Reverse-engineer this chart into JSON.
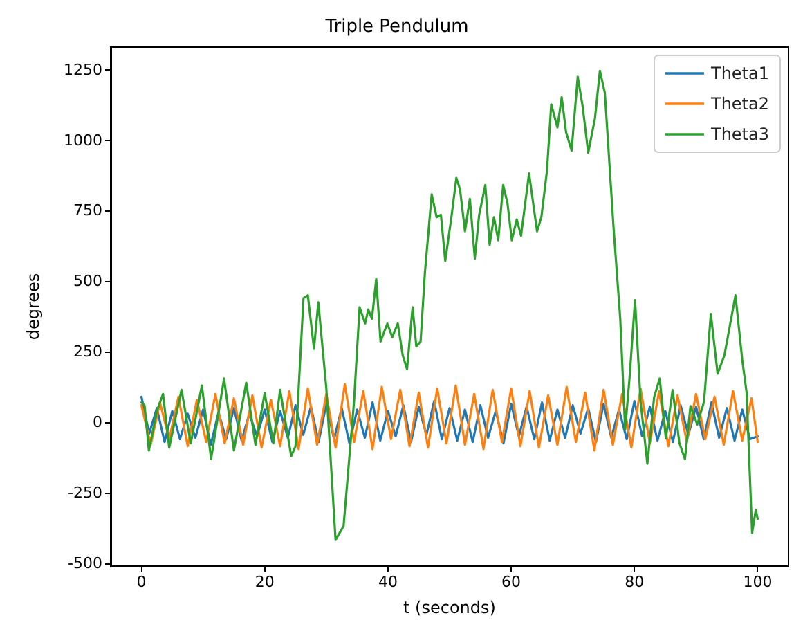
{
  "chart_data": {
    "type": "line",
    "title": "Triple Pendulum",
    "xlabel": "t (seconds)",
    "ylabel": "degrees",
    "xlim": [
      -5,
      105
    ],
    "ylim": [
      -510,
      1330
    ],
    "xticks": [
      0,
      20,
      40,
      60,
      80,
      100
    ],
    "yticks": [
      -500,
      -250,
      0,
      250,
      500,
      750,
      1000,
      1250
    ],
    "grid": false,
    "legend": "top right",
    "marker": "none",
    "line_style": "solid",
    "series": [
      {
        "name": "Theta1",
        "color": "#1f77b4",
        "x": [
          0,
          1.25,
          2.5,
          3.75,
          5,
          6.25,
          7.5,
          8.75,
          10,
          11.25,
          12.5,
          13.75,
          15,
          16.25,
          17.5,
          18.75,
          20,
          21.25,
          22.5,
          23.75,
          25,
          26.25,
          27.5,
          28.75,
          30,
          31.25,
          32.5,
          33.75,
          35,
          36.25,
          37.5,
          38.75,
          40,
          41.25,
          42.5,
          43.75,
          45,
          46.25,
          47.5,
          48.75,
          50,
          51.25,
          52.5,
          53.75,
          55,
          56.25,
          57.5,
          58.75,
          60,
          61.25,
          62.5,
          63.75,
          65,
          66.25,
          67.5,
          68.75,
          70,
          71.25,
          72.5,
          73.75,
          75,
          76.25,
          77.5,
          78.75,
          80,
          81.25,
          82.5,
          83.75,
          85,
          86.25,
          87.5,
          88.75,
          90,
          91.25,
          92.5,
          93.75,
          95,
          96.25,
          97.5,
          98.75,
          100
        ],
        "values": [
          90,
          -40,
          50,
          -70,
          40,
          -60,
          30,
          -55,
          45,
          -80,
          35,
          -60,
          50,
          -65,
          30,
          -50,
          45,
          -70,
          40,
          -55,
          60,
          -45,
          55,
          -70,
          65,
          -60,
          50,
          -75,
          45,
          -55,
          70,
          -65,
          40,
          -50,
          60,
          -70,
          55,
          -45,
          75,
          -60,
          50,
          -65,
          45,
          -70,
          60,
          -55,
          40,
          -75,
          65,
          -50,
          55,
          -60,
          70,
          -65,
          45,
          -55,
          60,
          -40,
          50,
          -70,
          65,
          -55,
          45,
          -60,
          75,
          -50,
          55,
          -65,
          40,
          -70,
          60,
          -45,
          55,
          -60,
          70,
          -55,
          50,
          -65,
          45,
          -60,
          -50
        ]
      },
      {
        "name": "Theta2",
        "color": "#ff7f0e",
        "x": [
          0,
          1.5,
          3,
          4.5,
          6,
          7.5,
          9,
          10.5,
          12,
          13.5,
          15,
          16.5,
          18,
          19.5,
          21,
          22.5,
          24,
          25.5,
          27,
          28.5,
          30,
          31.5,
          33,
          34.5,
          36,
          37.5,
          39,
          40.5,
          42,
          43.5,
          45,
          46.5,
          48,
          49.5,
          51,
          52.5,
          54,
          55.5,
          57,
          58.5,
          60,
          61.5,
          63,
          64.5,
          66,
          67.5,
          69,
          70.5,
          72,
          73.5,
          75,
          76.5,
          78,
          79.5,
          81,
          82.5,
          84,
          85.5,
          87,
          88.5,
          90,
          91.5,
          93,
          94.5,
          96,
          97.5,
          99,
          100
        ],
        "values": [
          60,
          -80,
          70,
          -60,
          90,
          -85,
          80,
          -70,
          100,
          -75,
          85,
          -80,
          95,
          -90,
          80,
          -85,
          110,
          -95,
          120,
          -80,
          100,
          -90,
          135,
          -70,
          110,
          -95,
          125,
          -60,
          115,
          -85,
          105,
          -90,
          120,
          -75,
          130,
          -80,
          100,
          -95,
          115,
          -70,
          120,
          -85,
          110,
          -90,
          95,
          -80,
          125,
          -70,
          105,
          -100,
          115,
          -80,
          100,
          -90,
          120,
          -75,
          110,
          -85,
          95,
          -70,
          100,
          -60,
          90,
          -80,
          110,
          -65,
          85,
          -70
        ]
      },
      {
        "name": "Theta3",
        "color": "#2ca02c",
        "x": [
          0,
          0.5,
          1.2,
          2.5,
          3.5,
          4.5,
          6.5,
          8,
          9.8,
          11.3,
          13.4,
          15,
          17,
          18.5,
          20,
          21.4,
          22.5,
          24.3,
          25,
          26.3,
          27,
          28,
          28.7,
          30,
          31.5,
          32.8,
          34.5,
          35.4,
          36.3,
          36.8,
          37.4,
          38.1,
          38.8,
          39.9,
          40.7,
          41.6,
          42.4,
          43.1,
          44,
          44.6,
          45.3,
          46,
          47.1,
          47.9,
          48.6,
          49.3,
          50.3,
          51.1,
          51.7,
          52.5,
          53.3,
          54.1,
          54.8,
          55.8,
          56.5,
          57.2,
          57.9,
          58.7,
          59.4,
          60.1,
          60.9,
          61.6,
          62.9,
          64.2,
          64.9,
          65.8,
          66.5,
          67.5,
          68.2,
          68.9,
          69.8,
          70.8,
          71.6,
          72.5,
          73.6,
          74.4,
          75.2,
          76.6,
          77.7,
          78.5,
          79.2,
          80.1,
          81,
          82.1,
          83.2,
          84.1,
          85.1,
          86.2,
          87.3,
          88.2,
          89.1,
          90.2,
          91.3,
          92.4,
          93.5,
          94.6,
          96.4,
          97.5,
          98.2,
          99.1,
          99.7,
          100
        ],
        "values": [
          70,
          60,
          -100,
          40,
          100,
          -90,
          115,
          -75,
          130,
          -130,
          155,
          -100,
          140,
          -80,
          103,
          -75,
          115,
          -120,
          -85,
          440,
          450,
          260,
          425,
          120,
          -417,
          -368,
          75,
          408,
          350,
          400,
          367,
          507,
          286,
          350,
          302,
          350,
          237,
          188,
          408,
          269,
          286,
          531,
          808,
          727,
          735,
          572,
          727,
          866,
          825,
          677,
          792,
          580,
          735,
          841,
          629,
          727,
          645,
          841,
          776,
          645,
          719,
          661,
          882,
          677,
          727,
          890,
          1127,
          1045,
          1152,
          1029,
          963,
          1225,
          1119,
          955,
          1078,
          1246,
          1168,
          694,
          367,
          -25,
          155,
          433,
          73,
          -147,
          89,
          155,
          -57,
          114,
          -74,
          -131,
          57,
          -8,
          73,
          384,
          172,
          237,
          450,
          221,
          106,
          -392,
          -310,
          -343
        ]
      }
    ]
  }
}
